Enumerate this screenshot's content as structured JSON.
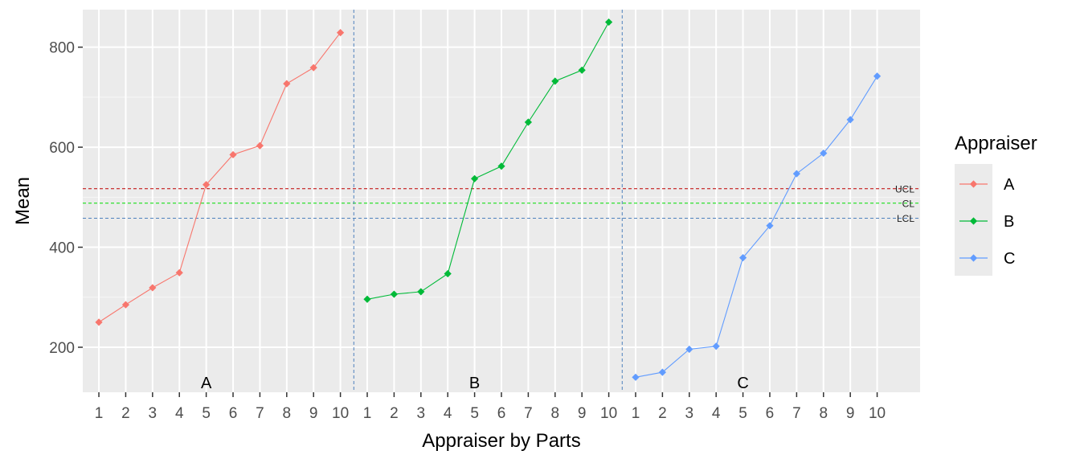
{
  "chart_data": {
    "type": "line",
    "xlabel": "Appraiser by Parts",
    "ylabel": "Mean",
    "ylim": [
      110,
      875
    ],
    "yticks": [
      200,
      400,
      600,
      800
    ],
    "grid": true,
    "legend": {
      "title": "Appraiser",
      "position": "right"
    },
    "parts": [
      "1",
      "2",
      "3",
      "4",
      "5",
      "6",
      "7",
      "8",
      "9",
      "10"
    ],
    "groups": [
      "A",
      "B",
      "C"
    ],
    "series": [
      {
        "name": "A",
        "color": "#F8766D",
        "values": [
          250,
          285,
          319,
          349,
          525,
          585,
          603,
          727,
          759,
          829
        ]
      },
      {
        "name": "B",
        "color": "#00BA38",
        "values": [
          296,
          306,
          311,
          347,
          537,
          562,
          650,
          732,
          754,
          850
        ]
      },
      {
        "name": "C",
        "color": "#619CFF",
        "values": [
          140,
          150,
          196,
          202,
          379,
          443,
          547,
          588,
          655,
          742
        ]
      }
    ],
    "reference_lines": [
      {
        "label": "UCL",
        "value": 517,
        "color": "#C00000"
      },
      {
        "label": "CL",
        "value": 488,
        "color": "#00DD00"
      },
      {
        "label": "LCL",
        "value": 458,
        "color": "#4F81BD"
      }
    ],
    "separator_color": "#4F81BD"
  }
}
